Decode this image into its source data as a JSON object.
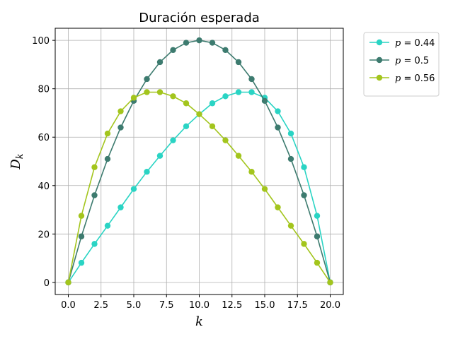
{
  "chart_data": {
    "type": "line",
    "title": "Duración esperada",
    "xlabel": "k",
    "ylabel_main": "D",
    "ylabel_sub": "k",
    "xlim": [
      -1,
      21
    ],
    "ylim": [
      -5,
      105
    ],
    "xticks": [
      0,
      2.5,
      5,
      7.5,
      10,
      12.5,
      15,
      17.5,
      20
    ],
    "xtick_labels": [
      "0.0",
      "2.5",
      "5.0",
      "7.5",
      "10.0",
      "12.5",
      "15.0",
      "17.5",
      "20.0"
    ],
    "yticks": [
      0,
      20,
      40,
      60,
      80,
      100
    ],
    "ytick_labels": [
      "0",
      "20",
      "40",
      "60",
      "80",
      "100"
    ],
    "grid": true,
    "legend_position": "outside-top-right",
    "x": [
      0,
      1,
      2,
      3,
      4,
      5,
      6,
      7,
      8,
      9,
      10,
      11,
      12,
      13,
      14,
      15,
      16,
      17,
      18,
      19,
      20
    ],
    "series": [
      {
        "name": "p = 0.44",
        "legend_var": "p",
        "legend_value": "0.44",
        "color": "#2ad4c4",
        "values": [
          0,
          8.1,
          15.9,
          23.4,
          31.0,
          38.6,
          45.7,
          52.3,
          58.7,
          64.5,
          69.5,
          74.0,
          76.9,
          78.6,
          78.6,
          76.3,
          70.7,
          61.5,
          47.6,
          27.5,
          0
        ]
      },
      {
        "name": "p = 0.5",
        "legend_var": "p",
        "legend_value": "0.5",
        "color": "#3d7b6f",
        "values": [
          0,
          19,
          36,
          51,
          64,
          75,
          84,
          91,
          96,
          99,
          100,
          99,
          96,
          91,
          84,
          75,
          64,
          51,
          36,
          19,
          0
        ]
      },
      {
        "name": "p = 0.56",
        "legend_var": "p",
        "legend_value": "0.56",
        "color": "#a3c51d",
        "values": [
          0,
          27.5,
          47.6,
          61.5,
          70.7,
          76.3,
          78.6,
          78.6,
          76.9,
          74.0,
          69.5,
          64.5,
          58.7,
          52.3,
          45.7,
          38.6,
          31.0,
          23.4,
          15.9,
          8.1,
          0
        ]
      }
    ]
  }
}
